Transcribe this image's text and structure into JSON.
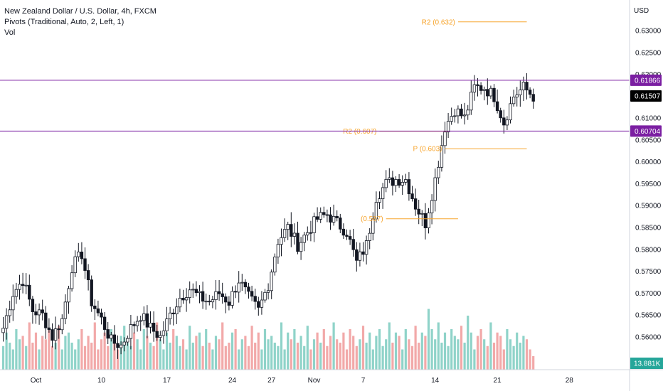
{
  "legend": {
    "symbol": "New Zealand Dollar / U.S. Dollar, 4h, FXCM",
    "indicator": "Pivots (Traditional, Auto, 2, Left, 1)",
    "volume": "Vol"
  },
  "currency": "USD",
  "colors": {
    "up": "#131722",
    "down": "#131722",
    "up_fill": "#ffffff",
    "vol_up": "#8fd3c9",
    "vol_down": "#f2a9a9",
    "pivot": "#f7a52e",
    "hline": "#7b1fa2",
    "last_bg": "#000000",
    "vol_tag_bg": "#26a69a"
  },
  "chart_data": {
    "type": "candlestick",
    "y_axis": {
      "min": 0.5525,
      "max": 0.637,
      "ticks": [
        "0.56000",
        "0.56500",
        "0.57000",
        "0.57500",
        "0.58000",
        "0.58500",
        "0.59000",
        "0.59500",
        "0.60000",
        "0.60500",
        "0.61000",
        "0.61500",
        "0.62000",
        "0.62500",
        "0.63000"
      ]
    },
    "x_axis": {
      "labels": [
        {
          "text": "Oct",
          "idx": 10
        },
        {
          "text": "10",
          "idx": 30
        },
        {
          "text": "17",
          "idx": 50
        },
        {
          "text": "24",
          "idx": 70
        },
        {
          "text": "27",
          "idx": 82
        },
        {
          "text": "Nov",
          "idx": 95
        },
        {
          "text": "7",
          "idx": 110
        },
        {
          "text": "14",
          "idx": 132
        },
        {
          "text": "21",
          "idx": 151
        },
        {
          "text": "28",
          "idx": 173
        }
      ]
    },
    "anchors": [
      [
        0,
        0.562
      ],
      [
        3,
        0.57
      ],
      [
        6,
        0.573
      ],
      [
        9,
        0.566
      ],
      [
        12,
        0.565
      ],
      [
        15,
        0.56
      ],
      [
        18,
        0.564
      ],
      [
        21,
        0.576
      ],
      [
        24,
        0.579
      ],
      [
        27,
        0.568
      ],
      [
        30,
        0.564
      ],
      [
        33,
        0.559
      ],
      [
        36,
        0.558
      ],
      [
        39,
        0.562
      ],
      [
        42,
        0.565
      ],
      [
        45,
        0.562
      ],
      [
        48,
        0.56
      ],
      [
        51,
        0.565
      ],
      [
        54,
        0.569
      ],
      [
        57,
        0.571
      ],
      [
        60,
        0.569
      ],
      [
        63,
        0.568
      ],
      [
        66,
        0.57
      ],
      [
        69,
        0.568
      ],
      [
        72,
        0.573
      ],
      [
        75,
        0.569
      ],
      [
        78,
        0.566
      ],
      [
        81,
        0.572
      ],
      [
        84,
        0.582
      ],
      [
        87,
        0.585
      ],
      [
        90,
        0.581
      ],
      [
        93,
        0.584
      ],
      [
        96,
        0.587
      ],
      [
        99,
        0.588
      ],
      [
        102,
        0.586
      ],
      [
        105,
        0.584
      ],
      [
        108,
        0.577
      ],
      [
        111,
        0.581
      ],
      [
        114,
        0.592
      ],
      [
        117,
        0.595
      ],
      [
        120,
        0.596
      ],
      [
        123,
        0.596
      ],
      [
        126,
        0.59
      ],
      [
        129,
        0.586
      ],
      [
        132,
        0.596
      ],
      [
        135,
        0.608
      ],
      [
        138,
        0.612
      ],
      [
        141,
        0.61
      ],
      [
        144,
        0.617
      ],
      [
        147,
        0.617
      ],
      [
        150,
        0.615
      ],
      [
        153,
        0.609
      ],
      [
        156,
        0.615
      ],
      [
        159,
        0.617
      ],
      [
        162,
        0.615
      ]
    ],
    "volumes": [
      0.35,
      0.55,
      0.4,
      0.3,
      0.6,
      0.45,
      0.5,
      0.35,
      0.7,
      0.4,
      0.55,
      0.3,
      0.5,
      0.45,
      0.6,
      0.35,
      0.4,
      0.65,
      0.3,
      0.5,
      0.55,
      0.4,
      0.3,
      0.45,
      0.6,
      0.35,
      0.5,
      0.4,
      0.7,
      0.3,
      0.45,
      0.55,
      0.35,
      0.6,
      0.4,
      0.3,
      0.5,
      0.65,
      0.4,
      0.35,
      0.55,
      0.45,
      0.3,
      0.6,
      0.5,
      0.4,
      0.35,
      0.7,
      0.45,
      0.3,
      0.55,
      0.4,
      0.6,
      0.5,
      0.35,
      0.45,
      0.3,
      0.65,
      0.4,
      0.5,
      0.55,
      0.35,
      0.6,
      0.4,
      0.3,
      0.5,
      0.45,
      0.7,
      0.35,
      0.4,
      0.55,
      0.6,
      0.3,
      0.45,
      0.5,
      0.35,
      0.65,
      0.4,
      0.55,
      0.3,
      0.6,
      0.45,
      0.5,
      0.4,
      0.35,
      0.7,
      0.3,
      0.55,
      0.45,
      0.6,
      0.4,
      0.5,
      0.35,
      0.65,
      0.3,
      0.45,
      0.55,
      0.4,
      0.6,
      0.35,
      0.5,
      0.7,
      0.45,
      0.4,
      0.55,
      0.3,
      0.6,
      0.5,
      0.35,
      0.45,
      0.65,
      0.4,
      0.55,
      0.3,
      0.5,
      0.6,
      0.35,
      0.45,
      0.7,
      0.4,
      0.55,
      0.5,
      0.3,
      0.6,
      0.45,
      0.35,
      0.65,
      0.4,
      0.55,
      0.5,
      0.9,
      0.6,
      0.45,
      0.7,
      0.4,
      0.55,
      0.35,
      0.6,
      0.5,
      0.45,
      0.65,
      0.4,
      0.8,
      0.55,
      0.3,
      0.5,
      0.6,
      0.45,
      0.35,
      0.7,
      0.4,
      0.55,
      0.5,
      0.3,
      0.6,
      0.45,
      0.35,
      0.55,
      0.4,
      0.5,
      0.45,
      0.3,
      0.2
    ],
    "pivots": [
      {
        "label": "R2 (0.632)",
        "value": 0.632,
        "from_idx": 139,
        "to_idx": 160
      },
      {
        "label": "R2 (0.607)",
        "value": 0.607,
        "from_idx": 115,
        "to_idx": 136
      },
      {
        "label": "P (0.603)",
        "value": 0.603,
        "from_idx": 135,
        "to_idx": 160
      },
      {
        "label": "(0.587)",
        "value": 0.587,
        "from_idx": 117,
        "to_idx": 139
      }
    ],
    "hlines": [
      {
        "value": 0.61866,
        "label": "0.61866"
      },
      {
        "value": 0.60704,
        "label": "0.60704"
      }
    ],
    "last_price": {
      "value": 0.61507,
      "label": "0.61507"
    },
    "volume_label": "13.881K"
  }
}
